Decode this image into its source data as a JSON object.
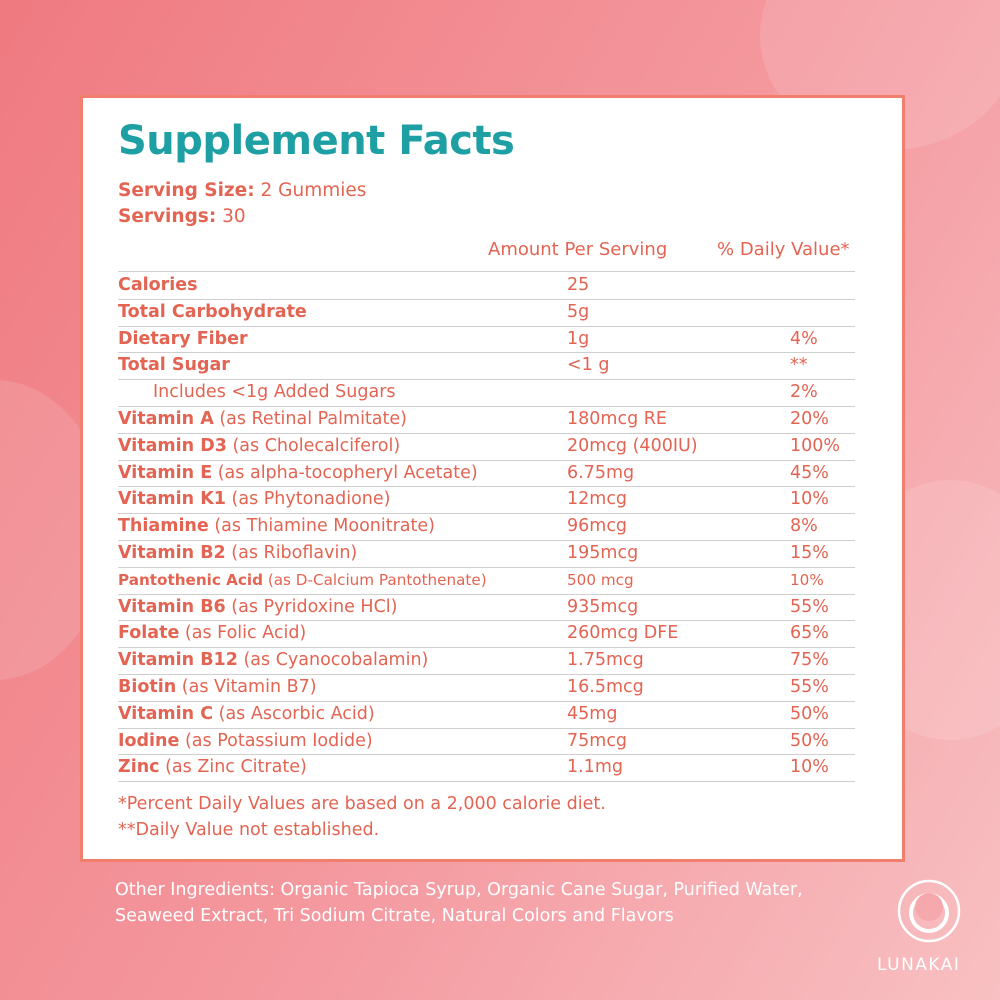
{
  "title": "Supplement Facts",
  "serving": {
    "size_label": "Serving Size:",
    "size": "2 Gummies",
    "servings_label": "Servings:",
    "servings": "30"
  },
  "table": {
    "headers": [
      "Amount Per Serving",
      "% Daily Value*"
    ],
    "rows": [
      {
        "name": "Calories",
        "amount": "25"
      },
      {
        "name": "Total Carbohydrate",
        "amount": "5g"
      },
      {
        "name": "Dietary Fiber",
        "amount": "1g",
        "dv": "4%"
      },
      {
        "name": "Total Sugar",
        "amount": "<1 g",
        "dv": "**"
      },
      {
        "sub": "Includes <1g Added Sugars",
        "dv": "2%"
      },
      {
        "name": "Vitamin A",
        "source": "(as Retinal Palmitate)",
        "amount": "180mcg RE",
        "dv": "20%"
      },
      {
        "name": "Vitamin D3",
        "source": "(as Cholecalciferol)",
        "amount": "20mcg (400IU)",
        "dv": "100%"
      },
      {
        "name": "Vitamin E",
        "source": "(as alpha-tocopheryl Acetate)",
        "amount": "6.75mg",
        "dv": "45%"
      },
      {
        "name": "Vitamin K1",
        "source": "(as Phytonadione)",
        "amount": "12mcg",
        "dv": "10%"
      },
      {
        "name": "Thiamine",
        "source": "(as Thiamine Moonitrate)",
        "amount": "96mcg",
        "dv": "8%"
      },
      {
        "name": "Vitamin B2",
        "source": "(as Riboflavin)",
        "amount": "195mcg",
        "dv": "15%"
      },
      {
        "name": "Pantothenic Acid",
        "source": "(as D-Calcium Pantothenate)",
        "amount": "500 mcg",
        "dv": "10%"
      },
      {
        "name": "Vitamin B6",
        "source": "(as Pyridoxine HCl)",
        "amount": "935mcg",
        "dv": "55%"
      },
      {
        "name": "Folate",
        "source": "(as Folic Acid)",
        "amount": "260mcg DFE",
        "dv": "65%"
      },
      {
        "name": "Vitamin B12",
        "source": "(as Cyanocobalamin)",
        "amount": "1.75mcg",
        "dv": "75%"
      },
      {
        "name": "Biotin",
        "source": "(as Vitamin B7)",
        "amount": "16.5mcg",
        "dv": "55%"
      },
      {
        "name": "Vitamin C",
        "source": "(as Ascorbic Acid)",
        "amount": "45mg",
        "dv": "50%"
      },
      {
        "name": "Iodine",
        "source": "(as Potassium Iodide)",
        "amount": "75mcg",
        "dv": "50%"
      },
      {
        "name": "Zinc",
        "source": "(as Zinc Citrate)",
        "amount": "1.1mg",
        "dv": "10%"
      }
    ]
  },
  "footnotes": [
    "*Percent Daily Values are based on a 2,000 calorie diet.",
    "**Daily Value not established."
  ],
  "ingredients": [
    "Other Ingredients: Organic Tapioca Syrup, Organic Cane Sugar, Purified Water,",
    "Seaweed Extract, Tri Sodium Citrate, Natural Colors and Flavors"
  ],
  "brand": "LUNAKAI"
}
